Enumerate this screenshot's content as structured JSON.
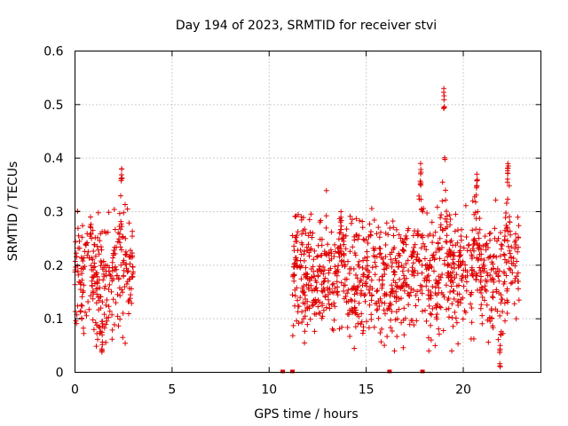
{
  "chart_data": {
    "type": "scatter",
    "title": "Day 194 of 2023, SRMTID for receiver stvi",
    "xlabel": "GPS time / hours",
    "ylabel": "SRMTID / TECUs",
    "xlim": [
      0,
      24
    ],
    "ylim": [
      0,
      0.6
    ],
    "xticks": [
      0,
      5,
      10,
      15,
      20
    ],
    "yticks": [
      0,
      0.1,
      0.2,
      0.3,
      0.4,
      0.5,
      0.6
    ],
    "xtick_labels": [
      "0",
      "5",
      "10",
      "15",
      "20"
    ],
    "ytick_labels": [
      "0",
      "0.1",
      "0.2",
      "0.3",
      "0.4",
      "0.5",
      "0.6"
    ],
    "grid": true,
    "series": [
      {
        "name": "SRMTID",
        "marker": "plus",
        "color": "#e00000",
        "segments": [
          {
            "x_start": 0.0,
            "x_end": 3.0,
            "typical_range": [
              0.08,
              0.28
            ],
            "peaks": [
              [
                0.8,
                0.29
              ],
              [
                2.4,
                0.38
              ],
              [
                1.4,
                0.07
              ]
            ]
          },
          {
            "x_start": 11.2,
            "x_end": 22.9,
            "typical_range": [
              0.08,
              0.28
            ],
            "peaks": [
              [
                13.7,
                0.3
              ],
              [
                17.8,
                0.39
              ],
              [
                19.0,
                0.53
              ],
              [
                20.7,
                0.37
              ],
              [
                22.3,
                0.39
              ],
              [
                21.9,
                0.05
              ]
            ]
          }
        ]
      }
    ],
    "baseline_markers": [
      {
        "x": 10.7,
        "y": 0
      },
      {
        "x": 11.2,
        "y": 0
      },
      {
        "x": 16.2,
        "y": 0
      },
      {
        "x": 17.9,
        "y": 0
      }
    ]
  }
}
